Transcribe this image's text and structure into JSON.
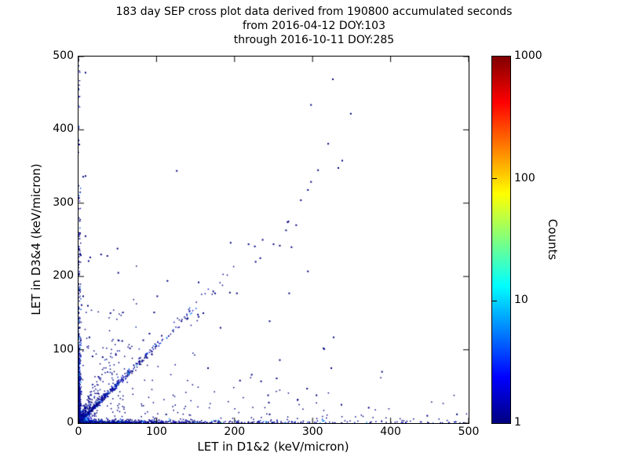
{
  "chart_data": {
    "type": "scatter",
    "title_lines": [
      "183 day SEP cross plot data derived from 190800 accumulated seconds",
      "from 2016-04-12 DOY:103",
      "through 2016-10-11 DOY:285"
    ],
    "xlabel": "LET in D1&2 (keV/micron)",
    "ylabel": "LET in D3&4 (keV/micron)",
    "xlim": [
      0,
      500
    ],
    "ylim": [
      0,
      500
    ],
    "x_ticks": [
      0,
      100,
      200,
      300,
      400,
      500
    ],
    "x_tick_labels": [
      "0",
      "100",
      "200",
      "300",
      "400",
      "500"
    ],
    "y_ticks": [
      0,
      100,
      200,
      300,
      400,
      500
    ],
    "y_tick_labels": [
      "0",
      "100",
      "200",
      "300",
      "400",
      "500"
    ],
    "grid": false,
    "background": "#ffffff",
    "frame_color": "#000000",
    "colorbar": {
      "label": "Counts",
      "scale": "log",
      "range": [
        1,
        1000
      ],
      "ticks": [
        1000,
        100,
        10,
        1
      ],
      "tick_labels": [
        "1000",
        "100",
        "10",
        "1"
      ],
      "colormap": "jet",
      "gradient_stops": [
        [
          "0%",
          "#000080"
        ],
        [
          "12.5%",
          "#0000ff"
        ],
        [
          "37.5%",
          "#00ffff"
        ],
        [
          "62.5%",
          "#ffff00"
        ],
        [
          "87.5%",
          "#ff0000"
        ],
        [
          "100%",
          "#800000"
        ]
      ]
    },
    "sparse_point_color": "#00007f",
    "sparse_points": [
      [
        9,
        478
      ],
      [
        326,
        469
      ],
      [
        298,
        434
      ],
      [
        349,
        422
      ],
      [
        320,
        381
      ],
      [
        1,
        380
      ],
      [
        338,
        358
      ],
      [
        333,
        348
      ],
      [
        307,
        345
      ],
      [
        126,
        344
      ],
      [
        9,
        337
      ],
      [
        6,
        336
      ],
      [
        298,
        329
      ],
      [
        294,
        318
      ],
      [
        285,
        304
      ],
      [
        269,
        275
      ],
      [
        268,
        274
      ],
      [
        279,
        270
      ],
      [
        266,
        263
      ],
      [
        2,
        259
      ],
      [
        9,
        255
      ],
      [
        236,
        250
      ],
      [
        195,
        246
      ],
      [
        250,
        244
      ],
      [
        218,
        244
      ],
      [
        258,
        242
      ],
      [
        226,
        241
      ],
      [
        273,
        240
      ],
      [
        50,
        238
      ],
      [
        1,
        237
      ],
      [
        2,
        231
      ],
      [
        29,
        230
      ],
      [
        3,
        229
      ],
      [
        37,
        228
      ],
      [
        15,
        226
      ],
      [
        233,
        225
      ],
      [
        13,
        221
      ],
      [
        227,
        220
      ],
      [
        0,
        216
      ],
      [
        294,
        207
      ],
      [
        51,
        205
      ],
      [
        114,
        194
      ],
      [
        154,
        192
      ],
      [
        194,
        178
      ],
      [
        175,
        177
      ],
      [
        203,
        177
      ],
      [
        270,
        177
      ],
      [
        6,
        173
      ],
      [
        101,
        173
      ],
      [
        4,
        161
      ],
      [
        12,
        160
      ],
      [
        160,
        150
      ],
      [
        97,
        151
      ],
      [
        41,
        150
      ],
      [
        153,
        148
      ],
      [
        154,
        145
      ],
      [
        140,
        143
      ],
      [
        139,
        142
      ],
      [
        245,
        139
      ],
      [
        132,
        139
      ],
      [
        182,
        130
      ],
      [
        0,
        121
      ],
      [
        91,
        122
      ],
      [
        327,
        117
      ],
      [
        14,
        117
      ],
      [
        3,
        113
      ],
      [
        83,
        113
      ],
      [
        51,
        113
      ],
      [
        56,
        112
      ],
      [
        66,
        102
      ],
      [
        314,
        102
      ],
      [
        315,
        101
      ],
      [
        94,
        94
      ],
      [
        48,
        93
      ],
      [
        86,
        92
      ],
      [
        18,
        91
      ],
      [
        79,
        89
      ],
      [
        88,
        89
      ],
      [
        31,
        90
      ],
      [
        258,
        86
      ],
      [
        324,
        75
      ],
      [
        166,
        75
      ],
      [
        389,
        70
      ],
      [
        222,
        66
      ],
      [
        254,
        61
      ],
      [
        207,
        58
      ],
      [
        234,
        57
      ],
      [
        293,
        47
      ],
      [
        305,
        38
      ],
      [
        243,
        38
      ],
      [
        281,
        32
      ],
      [
        244,
        28
      ],
      [
        337,
        25
      ],
      [
        372,
        21
      ],
      [
        245,
        12
      ],
      [
        485,
        12
      ],
      [
        447,
        10
      ]
    ],
    "clusters": [
      {
        "kind": "radial_hist",
        "cx": 0,
        "cy": 0,
        "rings": [
          [
            1.6,
            "#aa0000",
            1
          ],
          [
            2.4,
            "#ee2200",
            1
          ],
          [
            3.2,
            "#ff8800",
            1
          ],
          [
            4.2,
            "#ffee00",
            1
          ],
          [
            5.5,
            "#aaee22",
            0.95
          ],
          [
            7,
            "#33cc55",
            0.9
          ],
          [
            9,
            "#00ccbb",
            0.75
          ],
          [
            11.5,
            "#00aaff",
            0.6
          ],
          [
            14.5,
            "#0044ee",
            0.45
          ],
          [
            18,
            "#0000cc",
            0.3
          ],
          [
            26,
            "#000088",
            0.14
          ]
        ]
      },
      {
        "kind": "band",
        "axis": "x",
        "n": 620,
        "decay": 85,
        "max": 500,
        "uniform_n": 95,
        "sigma": 1.7,
        "palette": [
          [
            "#000080",
            0.62
          ],
          [
            "#0000b8",
            0.2
          ],
          [
            "#0033dd",
            0.1
          ],
          [
            "#0099ff",
            0.05
          ],
          [
            "#00ddaa",
            0.03
          ]
        ]
      },
      {
        "kind": "band",
        "axis": "y",
        "n": 400,
        "decay": 55,
        "max": 500,
        "uniform_n": 55,
        "sigma": 1.4,
        "palette": [
          [
            "#000080",
            0.66
          ],
          [
            "#0000bb",
            0.2
          ],
          [
            "#0044e0",
            0.09
          ],
          [
            "#00aaff",
            0.05
          ]
        ]
      },
      {
        "kind": "diag",
        "n": 470,
        "decay": 50,
        "max": 215,
        "slope": 1.06,
        "sigma": 2.6,
        "palette": [
          [
            "#000080",
            0.6
          ],
          [
            "#0000c0",
            0.24
          ],
          [
            "#0044dd",
            0.11
          ],
          [
            "#00bbee",
            0.05
          ]
        ]
      },
      {
        "kind": "wedge",
        "n": 210,
        "decay": 27,
        "max": 78,
        "spread": 1.9,
        "palette": [
          [
            "#000080",
            0.78
          ],
          [
            "#0022bb",
            0.22
          ]
        ]
      },
      {
        "kind": "box",
        "n": 240,
        "x0": 0,
        "x1": 165,
        "y0": 0,
        "y1": 165,
        "falloff": 120,
        "palette": [
          [
            "#000080",
            1
          ]
        ]
      },
      {
        "kind": "strip",
        "n": 135,
        "x0": 0,
        "x1": 500,
        "xdecay": 260,
        "ybase": 4,
        "ydecay": 20,
        "ymax": 65,
        "palette": [
          [
            "#000080",
            1
          ]
        ]
      }
    ]
  }
}
